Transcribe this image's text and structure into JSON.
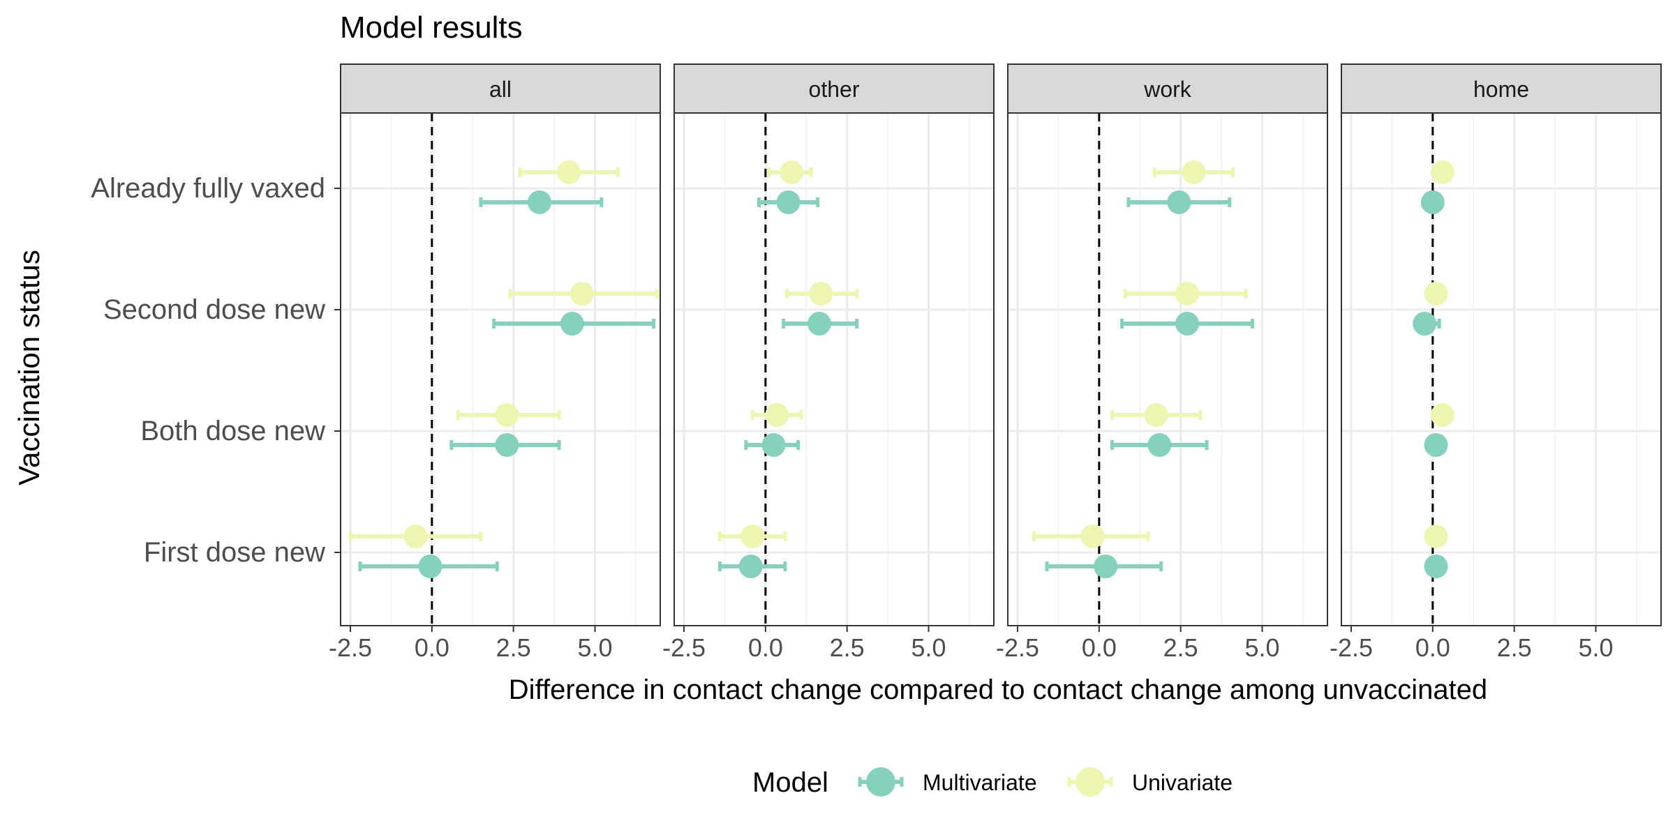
{
  "chart_data": {
    "type": "scatter",
    "title": "Model results",
    "xlabel": "Difference in contact change compared to contact change among unvaccinated",
    "ylabel": "Vaccination status",
    "xlim": [
      -2.8,
      7.0
    ],
    "x_ticks": [
      -2.5,
      0.0,
      2.5,
      5.0
    ],
    "x_tick_labels": [
      "-2.5",
      "0.0",
      "2.5",
      "5.0"
    ],
    "reference_line": 0,
    "grid": true,
    "categories": [
      "Already fully vaxed",
      "Second dose new",
      "Both dose new",
      "First dose new"
    ],
    "panels": [
      "all",
      "other",
      "work",
      "home"
    ],
    "legend": {
      "title": "Model",
      "position": "bottom",
      "entries": [
        "Multivariate",
        "Univariate"
      ]
    },
    "series": [
      {
        "name": "Multivariate",
        "color": "#85d1bd",
        "panels": [
          {
            "panel": "all",
            "points": [
              {
                "category": "Already fully vaxed",
                "estimate": 3.3,
                "lower": 1.5,
                "upper": 5.2
              },
              {
                "category": "Second dose new",
                "estimate": 4.3,
                "lower": 1.9,
                "upper": 6.8
              },
              {
                "category": "Both dose new",
                "estimate": 2.3,
                "lower": 0.6,
                "upper": 3.9
              },
              {
                "category": "First dose new",
                "estimate": -0.05,
                "lower": -2.2,
                "upper": 2.0
              }
            ]
          },
          {
            "panel": "other",
            "points": [
              {
                "category": "Already fully vaxed",
                "estimate": 0.7,
                "lower": -0.2,
                "upper": 1.6
              },
              {
                "category": "Second dose new",
                "estimate": 1.65,
                "lower": 0.55,
                "upper": 2.8
              },
              {
                "category": "Both dose new",
                "estimate": 0.25,
                "lower": -0.6,
                "upper": 1.0
              },
              {
                "category": "First dose new",
                "estimate": -0.45,
                "lower": -1.4,
                "upper": 0.6
              }
            ]
          },
          {
            "panel": "work",
            "points": [
              {
                "category": "Already fully vaxed",
                "estimate": 2.45,
                "lower": 0.9,
                "upper": 4.0
              },
              {
                "category": "Second dose new",
                "estimate": 2.7,
                "lower": 0.7,
                "upper": 4.7
              },
              {
                "category": "Both dose new",
                "estimate": 1.85,
                "lower": 0.4,
                "upper": 3.3
              },
              {
                "category": "First dose new",
                "estimate": 0.2,
                "lower": -1.6,
                "upper": 1.9
              }
            ]
          },
          {
            "panel": "home",
            "points": [
              {
                "category": "Already fully vaxed",
                "estimate": 0.0,
                "lower": 0.0,
                "upper": 0.0
              },
              {
                "category": "Second dose new",
                "estimate": -0.25,
                "lower": -0.4,
                "upper": 0.2
              },
              {
                "category": "Both dose new",
                "estimate": 0.1,
                "lower": 0.1,
                "upper": 0.1
              },
              {
                "category": "First dose new",
                "estimate": 0.1,
                "lower": 0.1,
                "upper": 0.1
              }
            ]
          }
        ]
      },
      {
        "name": "Univariate",
        "color": "#eef5b0",
        "panels": [
          {
            "panel": "all",
            "points": [
              {
                "category": "Already fully vaxed",
                "estimate": 4.2,
                "lower": 2.7,
                "upper": 5.7
              },
              {
                "category": "Second dose new",
                "estimate": 4.6,
                "lower": 2.4,
                "upper": 6.9
              },
              {
                "category": "Both dose new",
                "estimate": 2.3,
                "lower": 0.8,
                "upper": 3.9
              },
              {
                "category": "First dose new",
                "estimate": -0.5,
                "lower": -2.5,
                "upper": 1.5
              }
            ]
          },
          {
            "panel": "other",
            "points": [
              {
                "category": "Already fully vaxed",
                "estimate": 0.8,
                "lower": 0.1,
                "upper": 1.4
              },
              {
                "category": "Second dose new",
                "estimate": 1.7,
                "lower": 0.65,
                "upper": 2.8
              },
              {
                "category": "Both dose new",
                "estimate": 0.35,
                "lower": -0.4,
                "upper": 1.1
              },
              {
                "category": "First dose new",
                "estimate": -0.4,
                "lower": -1.4,
                "upper": 0.6
              }
            ]
          },
          {
            "panel": "work",
            "points": [
              {
                "category": "Already fully vaxed",
                "estimate": 2.9,
                "lower": 1.7,
                "upper": 4.1
              },
              {
                "category": "Second dose new",
                "estimate": 2.7,
                "lower": 0.8,
                "upper": 4.5
              },
              {
                "category": "Both dose new",
                "estimate": 1.75,
                "lower": 0.4,
                "upper": 3.1
              },
              {
                "category": "First dose new",
                "estimate": -0.2,
                "lower": -2.0,
                "upper": 1.5
              }
            ]
          },
          {
            "panel": "home",
            "points": [
              {
                "category": "Already fully vaxed",
                "estimate": 0.3,
                "lower": 0.3,
                "upper": 0.3
              },
              {
                "category": "Second dose new",
                "estimate": 0.1,
                "lower": 0.1,
                "upper": 0.1
              },
              {
                "category": "Both dose new",
                "estimate": 0.3,
                "lower": 0.3,
                "upper": 0.3
              },
              {
                "category": "First dose new",
                "estimate": 0.1,
                "lower": 0.1,
                "upper": 0.1
              }
            ]
          }
        ]
      }
    ]
  }
}
